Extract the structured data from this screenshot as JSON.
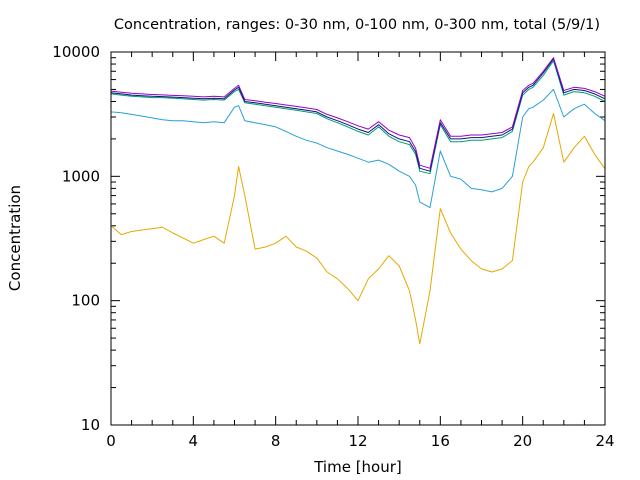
{
  "chart_data": {
    "type": "line",
    "title": "Concentration, ranges: 0-30 nm, 0-100 nm, 0-300 nm, total (5/9/1)",
    "xlabel": "Time [hour]",
    "ylabel": "Concentration",
    "xlim": [
      0,
      24
    ],
    "ylim": [
      10,
      10000
    ],
    "yscale": "log",
    "grid": false,
    "x_ticks": [
      "0",
      "4",
      "8",
      "12",
      "16",
      "20",
      "24"
    ],
    "x_tick_values": [
      0,
      4,
      8,
      12,
      16,
      20,
      24
    ],
    "y_ticks": [
      "10",
      "100",
      "1000",
      "10000"
    ],
    "y_tick_values": [
      10,
      100,
      1000,
      10000
    ],
    "x": [
      0,
      0.5,
      1,
      1.5,
      2,
      2.5,
      3,
      3.5,
      4,
      4.5,
      5,
      5.5,
      6,
      6.2,
      6.5,
      7,
      7.5,
      8,
      8.5,
      9,
      9.5,
      10,
      10.5,
      11,
      11.5,
      12,
      12.5,
      13,
      13.5,
      14,
      14.5,
      14.8,
      15,
      15.5,
      16,
      16.5,
      17,
      17.5,
      18,
      18.5,
      19,
      19.5,
      20,
      20.3,
      20.5,
      21,
      21.5,
      22,
      22.5,
      23,
      23.5,
      24
    ],
    "series": [
      {
        "color": "#e6a800",
        "values": [
          400,
          340,
          360,
          370,
          380,
          390,
          350,
          320,
          290,
          310,
          330,
          290,
          700,
          1200,
          700,
          260,
          270,
          290,
          330,
          270,
          250,
          220,
          170,
          150,
          125,
          100,
          150,
          180,
          230,
          190,
          120,
          70,
          45,
          120,
          550,
          350,
          260,
          210,
          180,
          170,
          180,
          210,
          900,
          1200,
          1300,
          1700,
          3200,
          1300,
          1700,
          2100,
          1500,
          1150
        ]
      },
      {
        "color": "#2aa0d8",
        "values": [
          3300,
          3250,
          3150,
          3050,
          2950,
          2850,
          2800,
          2800,
          2750,
          2700,
          2750,
          2700,
          3600,
          3700,
          2800,
          2700,
          2600,
          2500,
          2300,
          2100,
          1950,
          1850,
          1700,
          1600,
          1500,
          1400,
          1300,
          1350,
          1250,
          1100,
          1000,
          850,
          620,
          560,
          1600,
          1000,
          950,
          800,
          780,
          750,
          800,
          1000,
          3000,
          3500,
          3600,
          4100,
          5000,
          3000,
          3500,
          3800,
          3200,
          2800
        ]
      },
      {
        "color": "#009e73",
        "values": [
          4600,
          4500,
          4400,
          4350,
          4300,
          4300,
          4250,
          4200,
          4150,
          4100,
          4150,
          4100,
          4800,
          5000,
          3900,
          3800,
          3700,
          3600,
          3500,
          3400,
          3300,
          3200,
          2900,
          2700,
          2500,
          2300,
          2150,
          2500,
          2100,
          1900,
          1800,
          1500,
          1100,
          1050,
          2600,
          1900,
          1900,
          1950,
          1950,
          2000,
          2050,
          2300,
          4500,
          5000,
          5200,
          6500,
          8500,
          4500,
          4800,
          4700,
          4400,
          4000
        ]
      },
      {
        "color": "#0a1a70",
        "values": [
          4700,
          4600,
          4500,
          4450,
          4400,
          4380,
          4340,
          4300,
          4250,
          4200,
          4250,
          4200,
          4950,
          5200,
          4000,
          3900,
          3800,
          3700,
          3600,
          3500,
          3400,
          3300,
          3000,
          2800,
          2600,
          2400,
          2250,
          2600,
          2200,
          2000,
          1900,
          1580,
          1160,
          1100,
          2700,
          2000,
          2000,
          2050,
          2050,
          2100,
          2150,
          2400,
          4700,
          5200,
          5400,
          6800,
          8800,
          4700,
          5000,
          4900,
          4600,
          4200
        ]
      },
      {
        "color": "#9400d3",
        "values": [
          4850,
          4750,
          4650,
          4600,
          4550,
          4520,
          4480,
          4440,
          4400,
          4350,
          4400,
          4350,
          5100,
          5400,
          4150,
          4050,
          3950,
          3850,
          3750,
          3650,
          3550,
          3450,
          3150,
          2950,
          2750,
          2550,
          2400,
          2750,
          2350,
          2150,
          2050,
          1680,
          1230,
          1160,
          2850,
          2100,
          2100,
          2150,
          2150,
          2200,
          2250,
          2500,
          4900,
          5400,
          5600,
          7000,
          9000,
          4900,
          5200,
          5100,
          4800,
          4400
        ]
      }
    ]
  }
}
